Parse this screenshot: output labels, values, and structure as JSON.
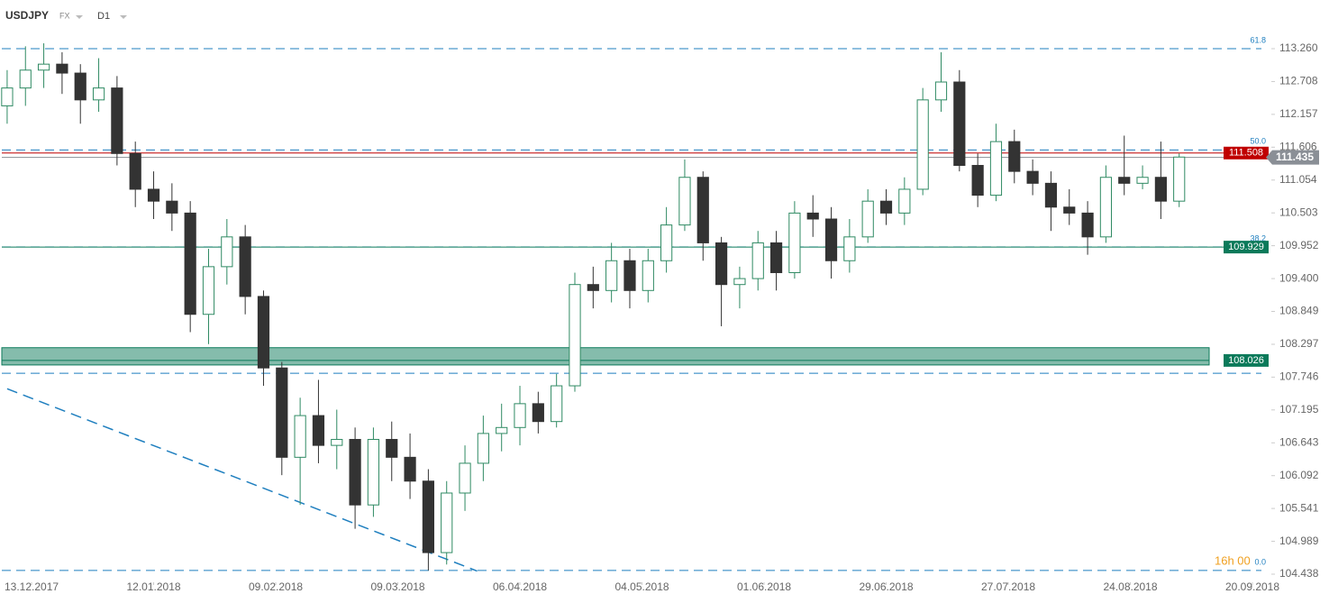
{
  "header": {
    "symbol": "USDJPY",
    "market": "FX",
    "interval": "D1"
  },
  "timer": "16h 00",
  "chart_data": {
    "type": "candlestick",
    "up_color": "#2f8a63",
    "down_color": "#333333",
    "xlim": [
      -5.17,
      202.95
    ],
    "ylim": [
      104.317,
      113.623
    ],
    "xticks": [
      {
        "value": 0,
        "label": "13.12.2017"
      },
      {
        "value": 20,
        "label": "12.01.2018"
      },
      {
        "value": 40,
        "label": "09.02.2018"
      },
      {
        "value": 60,
        "label": "09.03.2018"
      },
      {
        "value": 80,
        "label": "06.04.2018"
      },
      {
        "value": 100,
        "label": "04.05.2018"
      },
      {
        "value": 120,
        "label": "01.06.2018"
      },
      {
        "value": 140,
        "label": "29.06.2018"
      },
      {
        "value": 160,
        "label": "27.07.2018"
      },
      {
        "value": 180,
        "label": "24.08.2018"
      },
      {
        "value": 200,
        "label": "20.09.2018"
      }
    ],
    "yticks": [
      {
        "value": 113.26,
        "label": "113.260"
      },
      112.708,
      112.157,
      111.606,
      111.054,
      110.503,
      109.952,
      {
        "value": 109.4,
        "label": "109.400"
      },
      108.849,
      108.297,
      107.746,
      107.195,
      106.643,
      106.092,
      105.541,
      104.989,
      104.438
    ],
    "x": [
      -4,
      -1,
      2,
      5,
      8,
      11,
      14,
      17,
      20,
      23,
      26,
      29,
      32,
      35,
      38,
      41,
      44,
      47,
      50,
      53,
      56,
      59,
      62,
      65,
      68,
      71,
      74,
      77,
      80,
      83,
      86,
      89,
      92,
      95,
      98,
      101,
      104,
      107,
      110,
      113,
      116,
      119,
      122,
      125,
      128,
      131,
      134,
      137,
      140,
      143,
      146,
      149,
      152,
      155,
      158,
      161,
      164,
      167,
      170,
      173,
      176,
      179,
      182,
      185,
      188
    ],
    "open": [
      112.3,
      112.6,
      112.9,
      113.0,
      112.85,
      112.4,
      112.6,
      111.5,
      110.9,
      110.7,
      110.5,
      108.8,
      109.6,
      110.1,
      109.1,
      107.9,
      106.4,
      107.1,
      106.6,
      106.7,
      105.6,
      106.7,
      106.4,
      106.0,
      104.8,
      105.8,
      106.3,
      106.8,
      106.9,
      107.3,
      107.0,
      107.6,
      109.3,
      109.2,
      109.7,
      109.2,
      109.7,
      110.3,
      111.1,
      110.0,
      109.3,
      109.4,
      110.0,
      109.5,
      110.5,
      110.4,
      109.7,
      110.1,
      110.7,
      110.5,
      110.9,
      112.4,
      112.7,
      111.3,
      110.8,
      111.7,
      111.2,
      111.0,
      110.6,
      110.5,
      110.1,
      111.1,
      111.0,
      111.1,
      110.7
    ],
    "high": [
      112.9,
      113.3,
      113.35,
      113.2,
      113.0,
      113.1,
      112.8,
      111.7,
      111.2,
      111.0,
      110.7,
      109.9,
      110.4,
      110.3,
      109.2,
      108.0,
      107.4,
      107.7,
      107.2,
      106.9,
      106.9,
      107.0,
      106.8,
      106.2,
      106.0,
      106.6,
      107.1,
      107.3,
      107.6,
      107.5,
      107.8,
      109.5,
      109.6,
      110.0,
      109.9,
      109.9,
      110.6,
      111.4,
      111.2,
      110.1,
      109.6,
      110.2,
      110.2,
      110.7,
      110.8,
      110.6,
      110.4,
      110.9,
      110.9,
      111.1,
      112.6,
      113.2,
      112.9,
      111.5,
      112.0,
      111.9,
      111.4,
      111.2,
      110.9,
      110.7,
      111.3,
      111.8,
      111.3,
      111.7,
      111.5
    ],
    "low": [
      112.0,
      112.3,
      112.6,
      112.5,
      112.0,
      112.2,
      111.3,
      110.6,
      110.4,
      110.2,
      108.5,
      108.3,
      109.3,
      108.8,
      107.6,
      106.1,
      105.6,
      106.3,
      106.2,
      105.2,
      105.4,
      106.0,
      105.7,
      104.5,
      104.6,
      105.5,
      106.0,
      106.5,
      106.6,
      106.8,
      106.9,
      107.5,
      108.9,
      109.0,
      108.9,
      109.0,
      109.5,
      110.2,
      109.7,
      108.6,
      108.9,
      109.2,
      109.2,
      109.4,
      110.1,
      109.4,
      109.5,
      110.0,
      110.3,
      110.3,
      110.8,
      112.2,
      111.2,
      110.6,
      110.7,
      111.0,
      110.8,
      110.2,
      110.3,
      109.8,
      110.0,
      110.8,
      110.9,
      110.4,
      110.6
    ],
    "close": [
      112.6,
      112.9,
      113.0,
      112.85,
      112.4,
      112.6,
      111.5,
      110.9,
      110.7,
      110.5,
      108.8,
      109.6,
      110.1,
      109.1,
      107.9,
      106.4,
      107.1,
      106.6,
      106.7,
      105.6,
      106.7,
      106.4,
      106.0,
      104.8,
      105.8,
      106.3,
      106.8,
      106.9,
      107.3,
      107.0,
      107.6,
      109.3,
      109.2,
      109.7,
      109.2,
      109.7,
      110.3,
      111.1,
      110.0,
      109.3,
      109.4,
      110.0,
      109.5,
      110.5,
      110.4,
      109.7,
      110.1,
      110.7,
      110.5,
      110.9,
      112.4,
      112.7,
      111.3,
      110.8,
      111.7,
      111.2,
      111.0,
      110.6,
      110.5,
      110.1,
      111.1,
      111.0,
      111.1,
      110.7,
      111.44
    ],
    "fib_color": "#1f7fbf",
    "fib_levels": [
      {
        "label": "61.8",
        "value": 113.26
      },
      {
        "label": "50.0",
        "value": 111.56
      },
      {
        "label": "38.2",
        "value": 109.93
      },
      {
        "label": "0.0",
        "value": 104.5
      }
    ],
    "dashed_levels": [
      107.81
    ],
    "trendline": {
      "x": [
        -4,
        73
      ],
      "y": [
        107.55,
        104.49
      ]
    },
    "price_levels": [
      {
        "value": 111.508,
        "color": "#c00000"
      },
      {
        "value": 109.929,
        "color": "#0b7a5a"
      }
    ],
    "zone": {
      "low": 107.95,
      "high": 108.24,
      "level": 108.026,
      "color": "#0b7a5a"
    },
    "current_price": {
      "value": 111.435,
      "color": "#8a8f96"
    }
  }
}
